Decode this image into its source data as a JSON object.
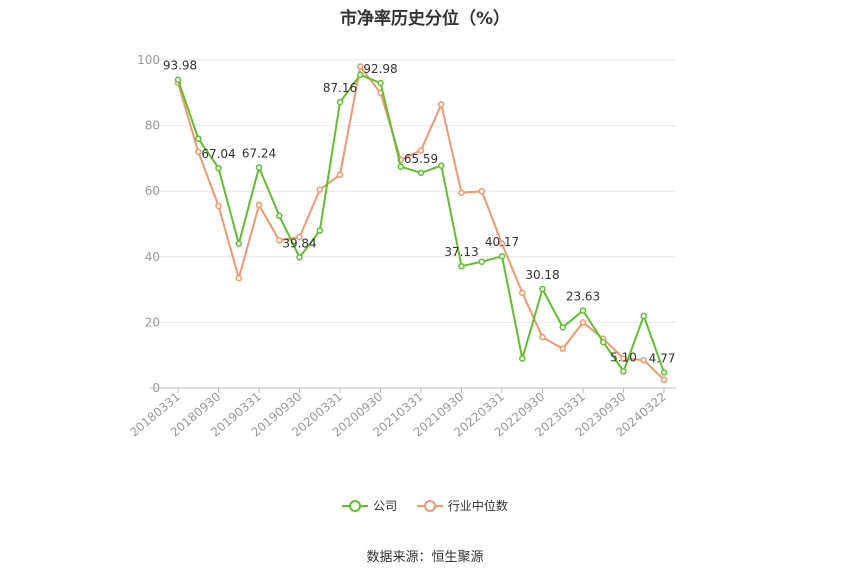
{
  "chart_data": {
    "type": "line",
    "title": "市净率历史分位（%）",
    "ylim": [
      0,
      100
    ],
    "yticks": [
      "0",
      "20",
      "40",
      "60",
      "80",
      "100"
    ],
    "x": [
      "20180331",
      "20180630",
      "20180930",
      "20181231",
      "20190331",
      "20190630",
      "20190930",
      "20191231",
      "20200331",
      "20200630",
      "20200930",
      "20201231",
      "20210331",
      "20210630",
      "20210930",
      "20211231",
      "20220331",
      "20220630",
      "20220930",
      "20221231",
      "20230331",
      "20230630",
      "20230930",
      "20231231",
      "20240322"
    ],
    "xtick_labels": [
      "20180331",
      "20180930",
      "20190331",
      "20190930",
      "20200331",
      "20200930",
      "20210331",
      "20210930",
      "20220331",
      "20220930",
      "20230331",
      "20230930",
      "20240322"
    ],
    "grid": true,
    "legend_position": "bottom",
    "series": [
      {
        "name": "公司",
        "color": "#5cc22a",
        "values": [
          93.98,
          76.0,
          67.04,
          44.0,
          67.24,
          52.5,
          39.84,
          48.0,
          87.16,
          95.5,
          92.98,
          67.5,
          65.59,
          67.8,
          37.13,
          38.5,
          40.17,
          9.0,
          30.18,
          18.5,
          23.63,
          14.0,
          5.1,
          22.0,
          4.77
        ]
      },
      {
        "name": "行业中位数",
        "color": "#f4976c",
        "values": [
          93.0,
          72.0,
          55.5,
          33.5,
          55.8,
          45.0,
          46.0,
          60.5,
          65.0,
          98.0,
          90.0,
          69.5,
          72.5,
          86.5,
          59.5,
          60.0,
          44.0,
          29.0,
          15.5,
          12.0,
          20.0,
          15.0,
          9.0,
          8.5,
          2.5
        ]
      }
    ],
    "annotations": [
      {
        "index": 0,
        "text": "93.98"
      },
      {
        "index": 2,
        "text": "67.04"
      },
      {
        "index": 4,
        "text": "67.24"
      },
      {
        "index": 6,
        "text": "39.84"
      },
      {
        "index": 8,
        "text": "87.16"
      },
      {
        "index": 10,
        "text": "92.98"
      },
      {
        "index": 12,
        "text": "65.59"
      },
      {
        "index": 14,
        "text": "37.13"
      },
      {
        "index": 16,
        "text": "40.17"
      },
      {
        "index": 18,
        "text": "30.18"
      },
      {
        "index": 20,
        "text": "23.63"
      },
      {
        "index": 22,
        "text": "5.10"
      },
      {
        "index": 24,
        "text": "4.77"
      }
    ]
  },
  "source_text": "数据来源：恒生聚源"
}
